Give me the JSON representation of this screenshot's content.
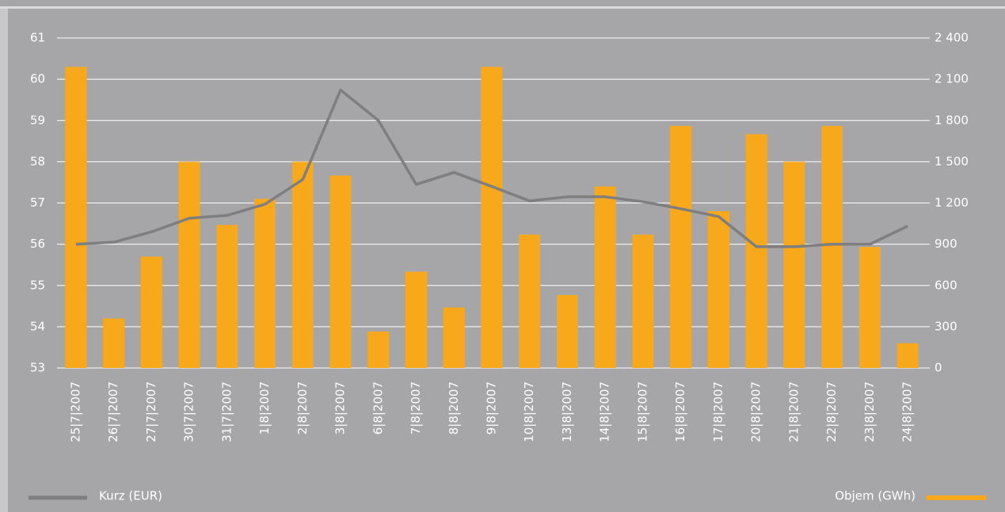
{
  "chart_data": {
    "type": "bar-line",
    "categories": [
      "25|7|2007",
      "26|7|2007",
      "27|7|2007",
      "30|7|2007",
      "31|7|2007",
      "1|8|2007",
      "2|8|2007",
      "3|8|2007",
      "6|8|2007",
      "7|8|2007",
      "8|8|2007",
      "9|8|2007",
      "10|8|2007",
      "13|8|2007",
      "14|8|2007",
      "15|8|2007",
      "16|8|2007",
      "17|8|2007",
      "20|8|2007",
      "21|8|2007",
      "22|8|2007",
      "23|8|2007",
      "24|8|2007"
    ],
    "series": [
      {
        "name": "Kurz (EUR)",
        "type": "line",
        "color": "#7f7f80",
        "axis": "y",
        "values": [
          56.0,
          56.05,
          56.3,
          56.63,
          56.7,
          56.97,
          57.57,
          59.74,
          59.0,
          57.45,
          57.74,
          57.4,
          57.05,
          57.15,
          57.15,
          57.03,
          56.86,
          56.67,
          55.94,
          55.94,
          56.0,
          56.0,
          56.44
        ]
      },
      {
        "name": "Objem (GWh)",
        "type": "bar",
        "color": "#f7a81b",
        "axis": "y2",
        "values": [
          2190,
          360,
          810,
          1500,
          1040,
          1230,
          1500,
          1400,
          265,
          700,
          440,
          2190,
          970,
          530,
          1320,
          970,
          1760,
          1140,
          1700,
          1500,
          1760,
          880,
          180
        ]
      }
    ],
    "ylim": [
      53,
      61
    ],
    "yticks": [
      53,
      54,
      55,
      56,
      57,
      58,
      59,
      60,
      61
    ],
    "y2lim": [
      0,
      2400
    ],
    "y2ticks": [
      0,
      300,
      600,
      900,
      {
        "value": 1200,
        "label": "1 200"
      },
      {
        "value": 1500,
        "label": "1 500"
      },
      {
        "value": 1800,
        "label": "1 800"
      },
      {
        "value": 2100,
        "label": "2 100"
      },
      {
        "value": 2400,
        "label": "2 400"
      }
    ],
    "grid": true
  }
}
